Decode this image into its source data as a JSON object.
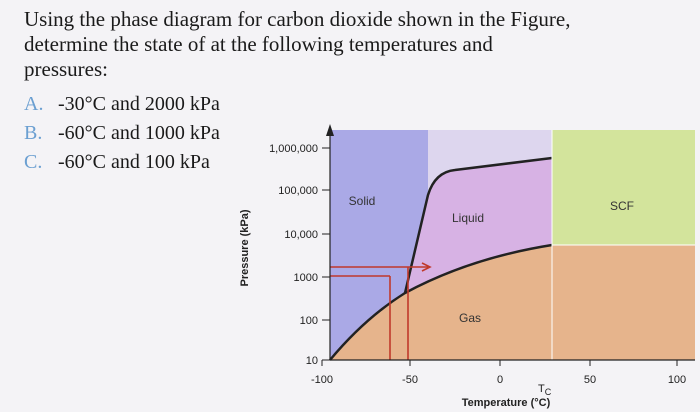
{
  "question": {
    "lines": [
      "Using the phase diagram for carbon dioxide shown in the Figure,",
      "determine the state of  at the following temperatures and",
      "pressures:"
    ],
    "options": [
      {
        "letter": "A.",
        "text": "-30°C and 2000 kPa"
      },
      {
        "letter": "B.",
        "text": "-60°C and 1000 kPa"
      },
      {
        "letter": "C.",
        "text": "-60°C and 100 kPa"
      }
    ]
  },
  "diagram": {
    "y_axis_label": "Pressure (kPa)",
    "x_axis_label": "Temperature (°C)",
    "y_ticks": [
      "1,000,000",
      "100,000",
      "10,000",
      "1000",
      "100",
      "10"
    ],
    "x_ticks": [
      "-100",
      "-50",
      "0",
      "50",
      "100"
    ],
    "tc_label": {
      "main": "T",
      "sub": "C"
    },
    "regions": {
      "solid": "Solid",
      "liquid": "Liquid",
      "gas": "Gas",
      "scf": "SCF"
    }
  }
}
